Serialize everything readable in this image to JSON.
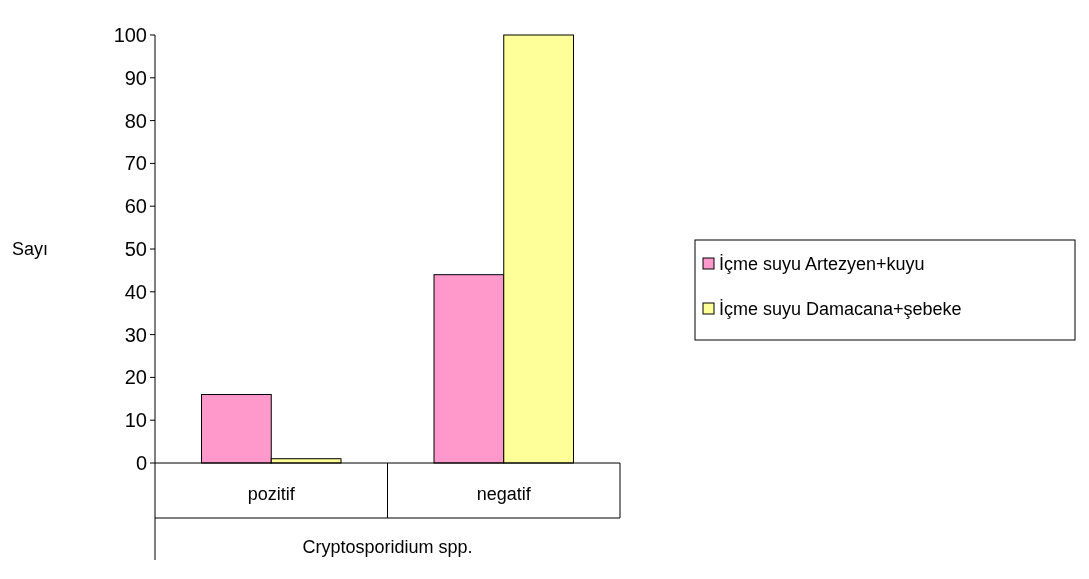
{
  "chart_data": {
    "type": "bar",
    "ylabel": "Sayı",
    "xlabel": "Cryptosporidium spp.",
    "categories": [
      "pozitif",
      "negatif"
    ],
    "series": [
      {
        "name": "İçme suyu Artezyen+kuyu",
        "color": "#ff99cc",
        "values": [
          16,
          44
        ]
      },
      {
        "name": "İçme suyu Damacana+şebeke",
        "color": "#ffff99",
        "values": [
          1,
          100
        ]
      }
    ],
    "ylim": [
      0,
      100
    ],
    "yticks": [
      0,
      10,
      20,
      30,
      40,
      50,
      60,
      70,
      80,
      90,
      100
    ],
    "legend": "right",
    "grid": false
  }
}
